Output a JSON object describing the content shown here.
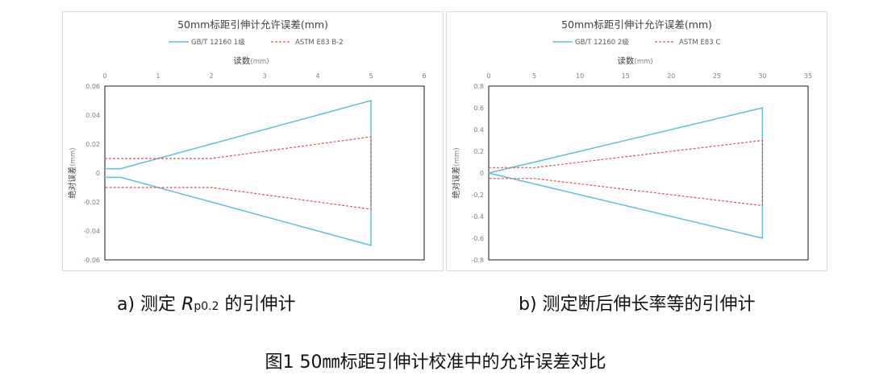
{
  "chart_data": [
    {
      "type": "line",
      "title": "50mm标距引伸计允许误差(mm)",
      "xlabel": "读数",
      "xlabel_unit": "(mm)",
      "ylabel": "绝对误差",
      "ylabel_unit": "(mm)",
      "xlim": [
        0,
        6
      ],
      "ylim": [
        -0.06,
        0.06
      ],
      "xticks": [
        0,
        1,
        2,
        3,
        4,
        5,
        6
      ],
      "yticks": [
        0.06,
        0.04,
        0.02,
        0,
        -0.02,
        -0.04,
        -0.06
      ],
      "ytick_labels": [
        "0.06",
        "0.04",
        "0.02",
        "0",
        "-0.02",
        "-0.04",
        "-0.06"
      ],
      "xaxis_position": "top",
      "legend": [
        "GB/T 12160 1级",
        "ASTM E83 B-2"
      ],
      "series": [
        {
          "name": "GB/T 12160 1级",
          "color": "#5bc0e0",
          "dash": "solid",
          "x": [
            0,
            0.3,
            5,
            5,
            0.3,
            0
          ],
          "y": [
            0.003,
            0.003,
            0.05,
            -0.05,
            -0.003,
            -0.003
          ]
        },
        {
          "name": "ASTM E83 B-2",
          "color": "#e05050",
          "dash": "dashed",
          "x": [
            0,
            2,
            5,
            5,
            2,
            0
          ],
          "y": [
            0.01,
            0.01,
            0.025,
            -0.025,
            -0.01,
            -0.01
          ]
        }
      ]
    },
    {
      "type": "line",
      "title": "50mm标距引伸计允许误差(mm)",
      "xlabel": "读数",
      "xlabel_unit": "(mm)",
      "ylabel": "绝对误差",
      "ylabel_unit": "(mm)",
      "xlim": [
        0,
        35
      ],
      "ylim": [
        -0.8,
        0.8
      ],
      "xticks": [
        0,
        5,
        10,
        15,
        20,
        25,
        30,
        35
      ],
      "yticks": [
        0.8,
        0.6,
        0.4,
        0.2,
        0,
        -0.2,
        -0.4,
        -0.6,
        -0.8
      ],
      "ytick_labels": [
        "0.8",
        "0.6",
        "0.4",
        "0.2",
        "0",
        "-0.2",
        "-0.4",
        "-0.6",
        "-0.8"
      ],
      "xaxis_position": "top",
      "legend": [
        "GB/T 12160 2级",
        "ASTM E83 C"
      ],
      "series": [
        {
          "name": "GB/T 12160 2级",
          "color": "#5bc0e0",
          "dash": "solid",
          "x": [
            0,
            30,
            30,
            0
          ],
          "y": [
            0,
            0.6,
            -0.6,
            0
          ]
        },
        {
          "name": "ASTM E83 C",
          "color": "#e05050",
          "dash": "dashed",
          "x": [
            0,
            5,
            30,
            30,
            5,
            0
          ],
          "y": [
            0.05,
            0.05,
            0.3,
            -0.3,
            -0.05,
            -0.05
          ]
        }
      ]
    }
  ],
  "captions": {
    "a_prefix": "a)  测定 ",
    "a_symbol": "R",
    "a_subscript": "p0.2",
    "a_suffix": " 的引伸计",
    "b": "b)  测定断后伸长率等的引伸计"
  },
  "figure_title": "图1  50㎜标距引伸计校准中的允许误差对比"
}
